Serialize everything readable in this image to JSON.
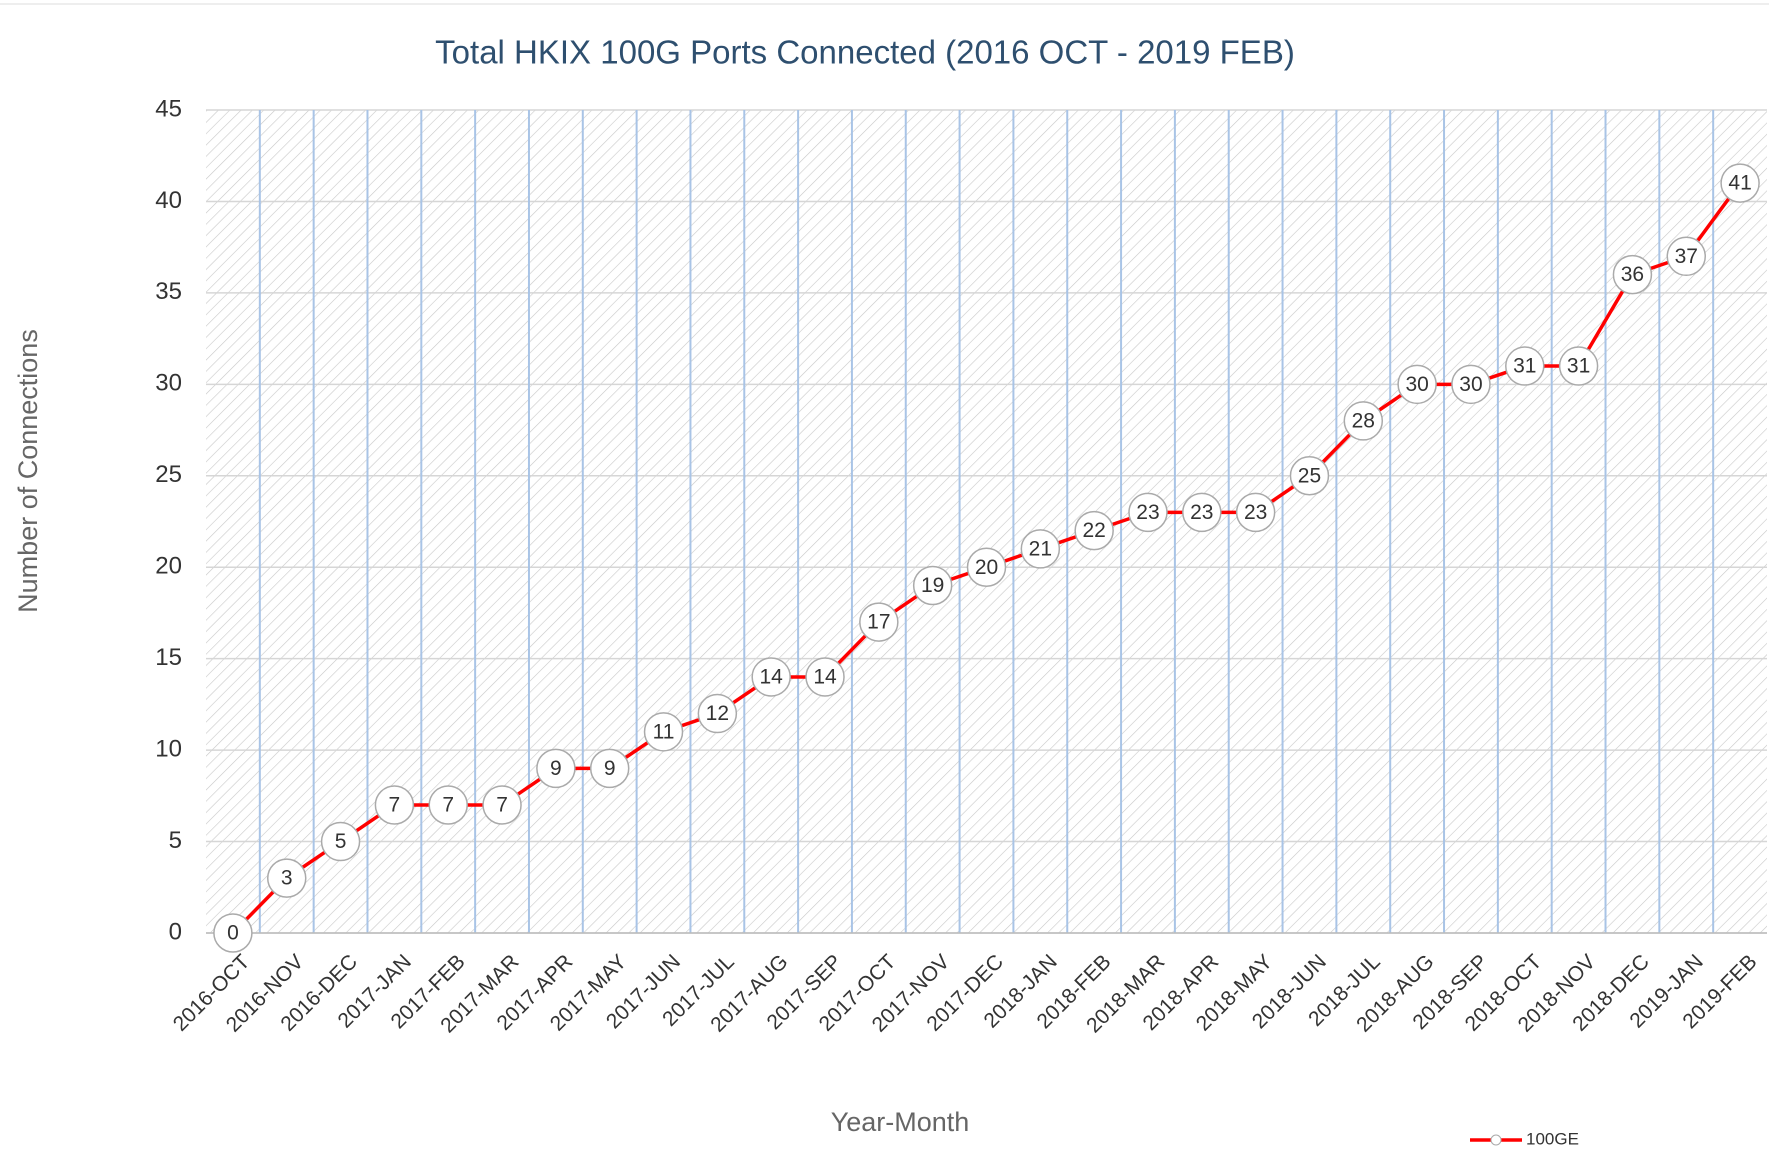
{
  "chart_data": {
    "type": "line",
    "title": "Total HKIX 100G Ports Connected (2016 OCT - 2019 FEB)",
    "x_label": "Year-Month",
    "y_label": "Number of Connections",
    "categories": [
      "2016-OCT",
      "2016-NOV",
      "2016-DEC",
      "2017-JAN",
      "2017-FEB",
      "2017-MAR",
      "2017-APR",
      "2017-MAY",
      "2017-JUN",
      "2017-JUL",
      "2017-AUG",
      "2017-SEP",
      "2017-OCT",
      "2017-NOV",
      "2017-DEC",
      "2018-JAN",
      "2018-FEB",
      "2018-MAR",
      "2018-APR",
      "2018-MAY",
      "2018-JUN",
      "2018-JUL",
      "2018-AUG",
      "2018-SEP",
      "2018-OCT",
      "2018-NOV",
      "2018-DEC",
      "2019-JAN",
      "2019-FEB"
    ],
    "series": [
      {
        "name": "100GE",
        "color": "#ff0000",
        "values": [
          0,
          3,
          5,
          7,
          7,
          7,
          9,
          9,
          11,
          12,
          14,
          14,
          17,
          19,
          20,
          21,
          22,
          23,
          23,
          23,
          25,
          28,
          30,
          30,
          31,
          31,
          36,
          37,
          41
        ]
      }
    ],
    "ylim": [
      0,
      45
    ],
    "yticks": [
      0,
      5,
      10,
      15,
      20,
      25,
      30,
      35,
      40,
      45
    ],
    "grid": true,
    "legend": "bottom-right"
  }
}
